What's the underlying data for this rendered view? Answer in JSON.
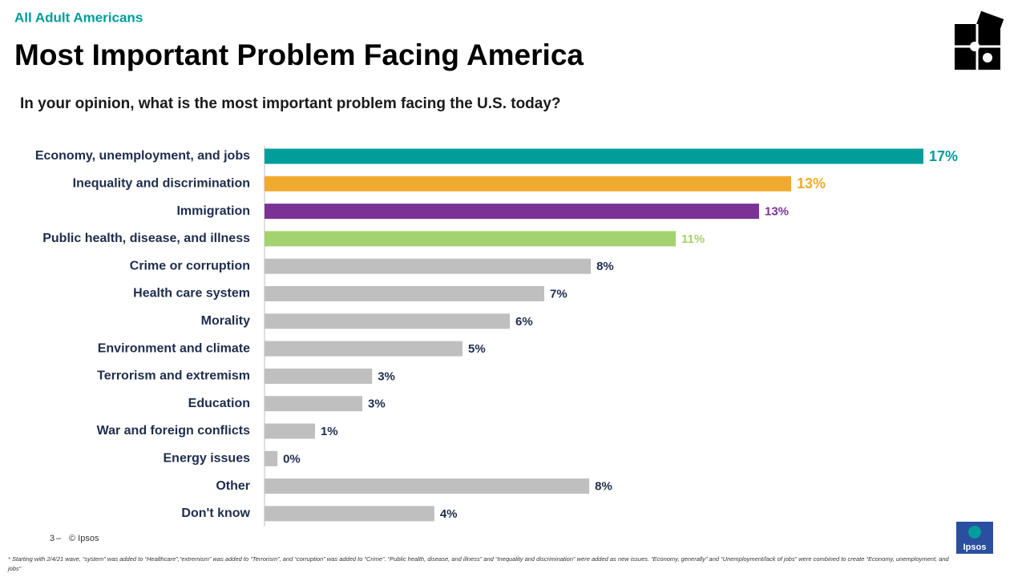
{
  "header": {
    "segment": "All Adult Americans",
    "title": "Most Important Problem Facing America",
    "question": "In your opinion, what is the most important problem facing the U.S. today?"
  },
  "chart_data": {
    "type": "bar",
    "orientation": "horizontal",
    "categories": [
      "Economy, unemployment, and jobs",
      "Inequality and discrimination",
      "Immigration",
      "Public health, disease, and illness",
      "Crime or corruption",
      "Health care system",
      "Morality",
      "Environment and climate",
      "Terrorism and extremism",
      "Education",
      "War and foreign conflicts",
      "Energy issues",
      "Other",
      "Don't know"
    ],
    "values": [
      16.84,
      13.46,
      12.64,
      10.51,
      8.34,
      7.15,
      6.27,
      5.06,
      2.75,
      2.5,
      1.29,
      0.33,
      8.3,
      4.34
    ],
    "value_labels": [
      "17%",
      "13%",
      "13%",
      "11%",
      "8%",
      "7%",
      "6%",
      "5%",
      "3%",
      "3%",
      "1%",
      "0%",
      "8%",
      "4%"
    ],
    "colors": [
      "#009d9a",
      "#f0ab2e",
      "#7b3294",
      "#a3d36e",
      "#bfbfbf",
      "#bfbfbf",
      "#bfbfbf",
      "#bfbfbf",
      "#bfbfbf",
      "#bfbfbf",
      "#bfbfbf",
      "#bfbfbf",
      "#bfbfbf",
      "#bfbfbf"
    ]
  },
  "footer": {
    "page": "3",
    "copyright": "© Ipsos",
    "logo": "Ipsos",
    "footnote": "* Starting with 2/4/21 wave, “system” was added to “Healthcare”,“extremism” was added to “Terrorism”, and “corruption” was added to “Crime”. “Public health, disease, and illness” and “Inequality and discrimination” were added as new issues. “Economy, generally” and “Unemployment/lack of jobs” were combined to create “Economy, unemployment, and jobs”"
  }
}
